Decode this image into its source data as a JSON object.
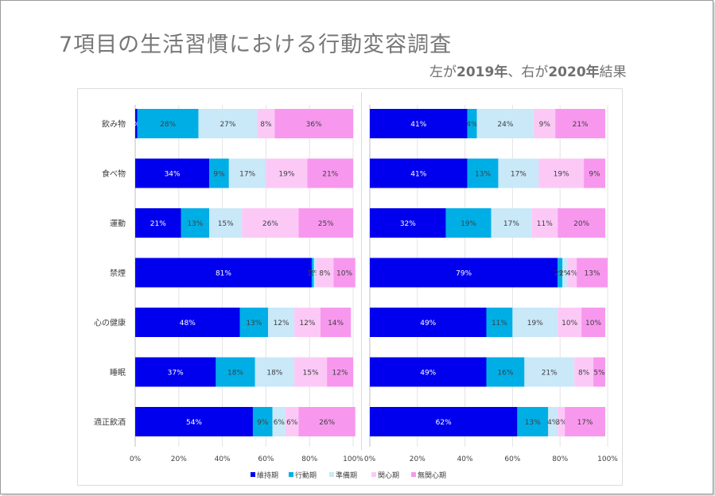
{
  "slide": {
    "title": "7項目の生活習慣における行動変容調査",
    "subtitle_prefix": "左が",
    "subtitle_year1": "2019年",
    "subtitle_mid": "、右が",
    "subtitle_year2": "2020年",
    "subtitle_suffix": "結果"
  },
  "colors": [
    "#0000ee",
    "#00aee6",
    "#c9e8f8",
    "#fcc9f7",
    "#f798ee"
  ],
  "chart_data": [
    {
      "type": "bar",
      "stacked": true,
      "orientation": "horizontal",
      "percent": true,
      "categories": [
        "飲み物",
        "食べ物",
        "運動",
        "禁煙",
        "心の健康",
        "睡眠",
        "適正飲酒"
      ],
      "xlim": [
        0,
        100
      ],
      "xticks": [
        "0%",
        "20%",
        "40%",
        "60%",
        "80%",
        "100%"
      ],
      "series": [
        {
          "name": "維持期",
          "values": [
            1,
            34,
            21,
            81,
            48,
            37,
            54
          ],
          "labels": [
            "%",
            "34%",
            "21%",
            "81%",
            "48%",
            "37%",
            "54%"
          ]
        },
        {
          "name": "行動期",
          "values": [
            28,
            9,
            13,
            1,
            13,
            18,
            9
          ],
          "labels": [
            "28%",
            "9%",
            "13%",
            "1%",
            "13%",
            "18%",
            "9%"
          ]
        },
        {
          "name": "準備期",
          "values": [
            27,
            17,
            15,
            1,
            12,
            18,
            6
          ],
          "labels": [
            "27%",
            "17%",
            "15%",
            "1%",
            "12%",
            "18%",
            "6%"
          ]
        },
        {
          "name": "関心期",
          "values": [
            8,
            19,
            26,
            8,
            12,
            15,
            6
          ],
          "labels": [
            "8%",
            "19%",
            "26%",
            "8%",
            "12%",
            "15%",
            "6%"
          ]
        },
        {
          "name": "無関心期",
          "values": [
            36,
            21,
            25,
            10,
            14,
            12,
            26
          ],
          "labels": [
            "36%",
            "21%",
            "25%",
            "10%",
            "14%",
            "12%",
            "26%"
          ]
        }
      ]
    },
    {
      "type": "bar",
      "stacked": true,
      "orientation": "horizontal",
      "percent": true,
      "categories": [
        "飲み物",
        "食べ物",
        "運動",
        "禁煙",
        "心の健康",
        "睡眠",
        "適正飲酒"
      ],
      "xlim": [
        0,
        100
      ],
      "xticks": [
        "0%",
        "20%",
        "40%",
        "60%",
        "80%",
        "100%"
      ],
      "series": [
        {
          "name": "維持期",
          "values": [
            41,
            41,
            32,
            79,
            49,
            49,
            62
          ],
          "labels": [
            "41%",
            "41%",
            "32%",
            "79%",
            "49%",
            "49%",
            "62%"
          ]
        },
        {
          "name": "行動期",
          "values": [
            4,
            13,
            19,
            2,
            11,
            16,
            13
          ],
          "labels": [
            "4%",
            "13%",
            "19%",
            "2%",
            "11%",
            "16%",
            "13%"
          ]
        },
        {
          "name": "準備期",
          "values": [
            24,
            17,
            17,
            2,
            19,
            21,
            4
          ],
          "labels": [
            "24%",
            "17%",
            "17%",
            "2%",
            "19%",
            "21%",
            "4%"
          ]
        },
        {
          "name": "関心期",
          "values": [
            9,
            19,
            11,
            4,
            10,
            8,
            3
          ],
          "labels": [
            "9%",
            "19%",
            "11%",
            "4%",
            "10%",
            "8%",
            "3%"
          ]
        },
        {
          "name": "無関心期",
          "values": [
            21,
            9,
            20,
            13,
            10,
            5,
            17
          ],
          "labels": [
            "21%",
            "9%",
            "20%",
            "13%",
            "10%",
            "5%",
            "17%"
          ]
        }
      ]
    }
  ]
}
